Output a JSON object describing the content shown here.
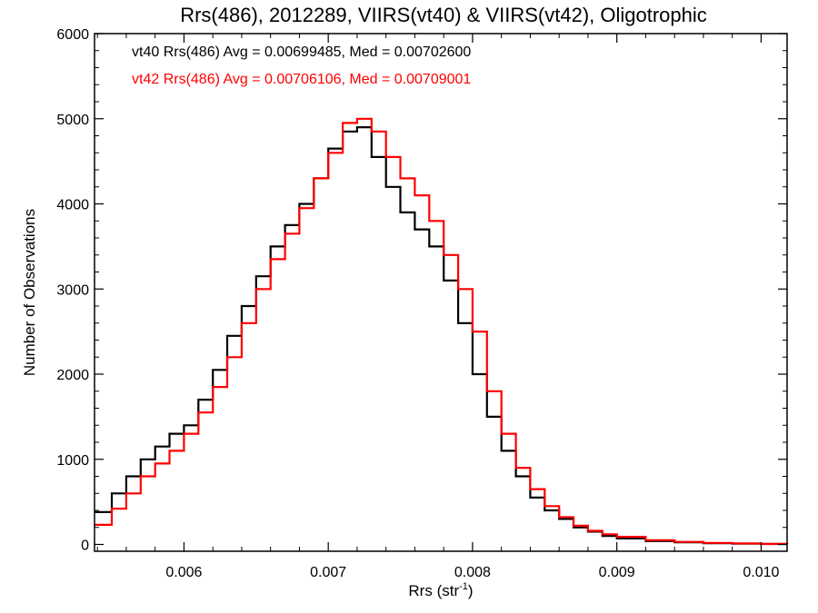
{
  "chart_data": {
    "type": "line",
    "title": "Rrs(486), 2012289, VIIRS(vt40) & VIIRS(vt42), Oligotrophic",
    "xlabel": "Rrs (str",
    "xlabel_sup": "-1",
    "xlabel_close": ")",
    "ylabel": "Number of Observations",
    "xlim": [
      0.00538,
      0.01018
    ],
    "ylim": [
      -80,
      6000
    ],
    "x_ticks": [
      0.006,
      0.007,
      0.008,
      0.009,
      0.01
    ],
    "x_tick_labels": [
      "0.006",
      "0.007",
      "0.008",
      "0.009",
      "0.010"
    ],
    "y_ticks": [
      0,
      1000,
      2000,
      3000,
      4000,
      5000,
      6000
    ],
    "y_tick_labels": [
      "0",
      "1000",
      "2000",
      "3000",
      "4000",
      "5000",
      "6000"
    ],
    "grid": false,
    "legend_position": "top-left",
    "series": [
      {
        "name": "vt40 Rrs(486) Avg = 0.00699485, Med = 0.00702600",
        "color": "#000000",
        "x": [
          0.00538,
          0.0055,
          0.0056,
          0.0057,
          0.0058,
          0.0059,
          0.006,
          0.0061,
          0.0062,
          0.0063,
          0.0064,
          0.0065,
          0.0066,
          0.0067,
          0.0068,
          0.0069,
          0.007,
          0.0071,
          0.0072,
          0.0073,
          0.0074,
          0.0075,
          0.0076,
          0.0077,
          0.0078,
          0.0079,
          0.008,
          0.0081,
          0.0082,
          0.0083,
          0.0084,
          0.0085,
          0.0086,
          0.0087,
          0.0088,
          0.0089,
          0.009,
          0.0092,
          0.0094,
          0.0096,
          0.0098,
          0.01,
          0.01018
        ],
        "y": [
          380,
          600,
          800,
          1000,
          1150,
          1300,
          1400,
          1700,
          2050,
          2450,
          2800,
          3150,
          3500,
          3750,
          4000,
          4300,
          4650,
          4850,
          4900,
          4550,
          4200,
          3900,
          3700,
          3500,
          3100,
          2600,
          2000,
          1500,
          1100,
          800,
          550,
          400,
          300,
          200,
          150,
          100,
          70,
          40,
          25,
          15,
          10,
          5,
          3
        ]
      },
      {
        "name": "vt42 Rrs(486) Avg = 0.00706106, Med = 0.00709001",
        "color": "#ff0000",
        "x": [
          0.00538,
          0.0055,
          0.0056,
          0.0057,
          0.0058,
          0.0059,
          0.006,
          0.0061,
          0.0062,
          0.0063,
          0.0064,
          0.0065,
          0.0066,
          0.0067,
          0.0068,
          0.0069,
          0.007,
          0.0071,
          0.0072,
          0.0073,
          0.0074,
          0.0075,
          0.0076,
          0.0077,
          0.0078,
          0.0079,
          0.008,
          0.0081,
          0.0082,
          0.0083,
          0.0084,
          0.0085,
          0.0086,
          0.0087,
          0.0088,
          0.0089,
          0.009,
          0.0092,
          0.0094,
          0.0096,
          0.0098,
          0.01,
          0.01018
        ],
        "y": [
          230,
          420,
          600,
          800,
          950,
          1100,
          1300,
          1550,
          1850,
          2200,
          2600,
          3000,
          3350,
          3650,
          3950,
          4300,
          4600,
          4950,
          5000,
          4850,
          4550,
          4300,
          4100,
          3800,
          3400,
          3000,
          2500,
          1800,
          1300,
          900,
          650,
          450,
          320,
          220,
          160,
          120,
          90,
          50,
          30,
          18,
          12,
          6,
          4
        ]
      }
    ]
  }
}
